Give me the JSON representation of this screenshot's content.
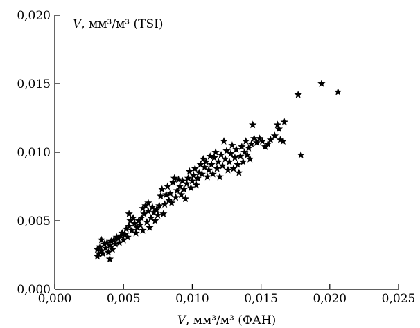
{
  "chart_data": {
    "type": "scatter",
    "title": "",
    "xlabel": {
      "var": "V",
      "rest": ", мм³/м³ (ФАН)"
    },
    "ylabel": {
      "var": "V",
      "rest": ", мм³/м³ (TSI)"
    },
    "xlim": [
      0.0,
      0.025
    ],
    "ylim": [
      0.0,
      0.02
    ],
    "xticks": [
      "0,000",
      "0,005",
      "0,010",
      "0,015",
      "0,020",
      "0,025"
    ],
    "yticks": [
      "0,000",
      "0,005",
      "0,010",
      "0,015",
      "0,020"
    ],
    "grid": false,
    "marker": "star",
    "color": "#000000",
    "points": [
      [
        0.0031,
        0.0024
      ],
      [
        0.0032,
        0.0026
      ],
      [
        0.0031,
        0.0029
      ],
      [
        0.0033,
        0.0031
      ],
      [
        0.0034,
        0.0028
      ],
      [
        0.0035,
        0.0026
      ],
      [
        0.0034,
        0.0036
      ],
      [
        0.0036,
        0.0033
      ],
      [
        0.0037,
        0.003
      ],
      [
        0.0038,
        0.0034
      ],
      [
        0.0039,
        0.0027
      ],
      [
        0.004,
        0.0022
      ],
      [
        0.004,
        0.0032
      ],
      [
        0.0041,
        0.0035
      ],
      [
        0.0042,
        0.0029
      ],
      [
        0.0043,
        0.0036
      ],
      [
        0.0044,
        0.0033
      ],
      [
        0.0045,
        0.0038
      ],
      [
        0.0046,
        0.0037
      ],
      [
        0.0047,
        0.0034
      ],
      [
        0.0048,
        0.0039
      ],
      [
        0.0049,
        0.0041
      ],
      [
        0.005,
        0.0036
      ],
      [
        0.0051,
        0.004
      ],
      [
        0.0052,
        0.0044
      ],
      [
        0.0053,
        0.0038
      ],
      [
        0.0054,
        0.0046
      ],
      [
        0.0054,
        0.0055
      ],
      [
        0.0055,
        0.005
      ],
      [
        0.0056,
        0.0043
      ],
      [
        0.0057,
        0.0052
      ],
      [
        0.0058,
        0.0048
      ],
      [
        0.0059,
        0.0041
      ],
      [
        0.006,
        0.0045
      ],
      [
        0.0061,
        0.005
      ],
      [
        0.0062,
        0.0047
      ],
      [
        0.0063,
        0.0052
      ],
      [
        0.0064,
        0.0043
      ],
      [
        0.0064,
        0.0059
      ],
      [
        0.0065,
        0.0055
      ],
      [
        0.0066,
        0.0061
      ],
      [
        0.0067,
        0.0049
      ],
      [
        0.0068,
        0.0057
      ],
      [
        0.0068,
        0.0063
      ],
      [
        0.0069,
        0.0045
      ],
      [
        0.007,
        0.0052
      ],
      [
        0.0071,
        0.006
      ],
      [
        0.0072,
        0.0056
      ],
      [
        0.0073,
        0.005
      ],
      [
        0.0074,
        0.0058
      ],
      [
        0.0075,
        0.0054
      ],
      [
        0.0076,
        0.0061
      ],
      [
        0.0077,
        0.0068
      ],
      [
        0.0078,
        0.0073
      ],
      [
        0.0079,
        0.0055
      ],
      [
        0.008,
        0.0062
      ],
      [
        0.0081,
        0.0069
      ],
      [
        0.0082,
        0.0075
      ],
      [
        0.0083,
        0.0065
      ],
      [
        0.0084,
        0.007
      ],
      [
        0.0085,
        0.0063
      ],
      [
        0.0086,
        0.0078
      ],
      [
        0.0087,
        0.0081
      ],
      [
        0.0088,
        0.0067
      ],
      [
        0.0089,
        0.0072
      ],
      [
        0.009,
        0.008
      ],
      [
        0.0091,
        0.0075
      ],
      [
        0.0092,
        0.0069
      ],
      [
        0.0093,
        0.0079
      ],
      [
        0.0094,
        0.0073
      ],
      [
        0.0095,
        0.0066
      ],
      [
        0.0096,
        0.0077
      ],
      [
        0.0097,
        0.0081
      ],
      [
        0.0098,
        0.0086
      ],
      [
        0.0099,
        0.0074
      ],
      [
        0.01,
        0.0079
      ],
      [
        0.0101,
        0.0083
      ],
      [
        0.0102,
        0.0088
      ],
      [
        0.0103,
        0.0076
      ],
      [
        0.0104,
        0.0081
      ],
      [
        0.0105,
        0.0085
      ],
      [
        0.0106,
        0.0091
      ],
      [
        0.0107,
        0.0084
      ],
      [
        0.0108,
        0.0095
      ],
      [
        0.0109,
        0.0089
      ],
      [
        0.011,
        0.0093
      ],
      [
        0.0111,
        0.0082
      ],
      [
        0.0112,
        0.0087
      ],
      [
        0.0113,
        0.0097
      ],
      [
        0.0114,
        0.0091
      ],
      [
        0.0115,
        0.0084
      ],
      [
        0.0116,
        0.0096
      ],
      [
        0.0117,
        0.01
      ],
      [
        0.0118,
        0.0088
      ],
      [
        0.0119,
        0.0093
      ],
      [
        0.012,
        0.0082
      ],
      [
        0.0121,
        0.0098
      ],
      [
        0.0122,
        0.009
      ],
      [
        0.0123,
        0.0108
      ],
      [
        0.0124,
        0.0095
      ],
      [
        0.0125,
        0.0101
      ],
      [
        0.0126,
        0.0087
      ],
      [
        0.0127,
        0.0093
      ],
      [
        0.0128,
        0.0099
      ],
      [
        0.0129,
        0.0105
      ],
      [
        0.013,
        0.0088
      ],
      [
        0.0131,
        0.0096
      ],
      [
        0.0132,
        0.0102
      ],
      [
        0.0133,
        0.0091
      ],
      [
        0.0134,
        0.0085
      ],
      [
        0.0135,
        0.0097
      ],
      [
        0.0136,
        0.0104
      ],
      [
        0.0137,
        0.0093
      ],
      [
        0.0138,
        0.01
      ],
      [
        0.0139,
        0.0108
      ],
      [
        0.014,
        0.0098
      ],
      [
        0.0141,
        0.0103
      ],
      [
        0.0142,
        0.0095
      ],
      [
        0.0143,
        0.0106
      ],
      [
        0.0144,
        0.012
      ],
      [
        0.0145,
        0.011
      ],
      [
        0.0147,
        0.0107
      ],
      [
        0.0149,
        0.011
      ],
      [
        0.0151,
        0.0108
      ],
      [
        0.0153,
        0.0104
      ],
      [
        0.0155,
        0.0106
      ],
      [
        0.0157,
        0.0109
      ],
      [
        0.016,
        0.0112
      ],
      [
        0.0162,
        0.012
      ],
      [
        0.0163,
        0.0117
      ],
      [
        0.0164,
        0.0109
      ],
      [
        0.0166,
        0.0108
      ],
      [
        0.0167,
        0.0122
      ],
      [
        0.0177,
        0.0142
      ],
      [
        0.0179,
        0.0098
      ],
      [
        0.0194,
        0.015
      ],
      [
        0.0206,
        0.0144
      ]
    ]
  }
}
